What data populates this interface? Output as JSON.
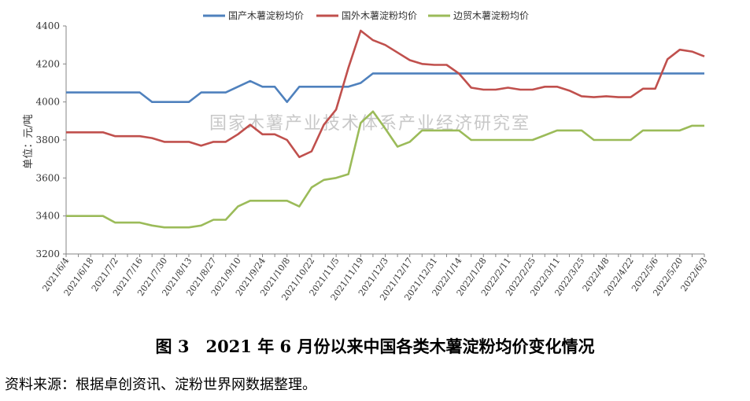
{
  "chart_data": {
    "type": "line",
    "title": "",
    "xlabel": "",
    "ylabel": "单位：元/吨",
    "ylim": [
      3200,
      4400
    ],
    "yticks": [
      3200,
      3400,
      3600,
      3800,
      4000,
      4200,
      4400
    ],
    "grid": false,
    "legend_position": "top",
    "watermark": "国家木薯产业技术体系产业经济研究室",
    "x": [
      "2021/6/4",
      "2021/6/11",
      "2021/6/18",
      "2021/6/25",
      "2021/7/2",
      "2021/7/9",
      "2021/7/16",
      "2021/7/23",
      "2021/7/30",
      "2021/8/6",
      "2021/8/13",
      "2021/8/20",
      "2021/8/27",
      "2021/9/3",
      "2021/9/10",
      "2021/9/17",
      "2021/9/24",
      "2021/10/1",
      "2021/10/8",
      "2021/10/15",
      "2021/10/22",
      "2021/10/29",
      "2021/11/5",
      "2021/11/12",
      "2021/11/19",
      "2021/11/26",
      "2021/12/3",
      "2021/12/10",
      "2021/12/17",
      "2021/12/24",
      "2021/12/31",
      "2022/1/7",
      "2022/1/14",
      "2022/1/21",
      "2022/1/28",
      "2022/2/4",
      "2022/2/11",
      "2022/2/18",
      "2022/2/25",
      "2022/3/4",
      "2022/3/11",
      "2022/3/18",
      "2022/3/25",
      "2022/4/1",
      "2022/4/8",
      "2022/4/15",
      "2022/4/22",
      "2022/4/29",
      "2022/5/6",
      "2022/5/13",
      "2022/5/20",
      "2022/5/27",
      "2022/6/3"
    ],
    "tick_labels": [
      "2021/6/4",
      "2021/6/18",
      "2021/7/2",
      "2021/7/16",
      "2021/7/30",
      "2021/8/13",
      "2021/8/27",
      "2021/9/10",
      "2021/9/24",
      "2021/10/8",
      "2021/10/22",
      "2021/11/5",
      "2021/11/19",
      "2021/12/3",
      "2021/12/17",
      "2021/12/31",
      "2022/1/14",
      "2022/1/28",
      "2022/2/11",
      "2022/2/25",
      "2022/3/11",
      "2022/3/25",
      "2022/4/8",
      "2022/4/22",
      "2022/5/6",
      "2022/5/20",
      "2022/6/3"
    ],
    "series": [
      {
        "name": "国产木薯淀粉均价",
        "color": "#4f81bd",
        "values": [
          4050,
          4050,
          4050,
          4050,
          4050,
          4050,
          4050,
          4000,
          4000,
          4000,
          4000,
          4050,
          4050,
          4050,
          4080,
          4110,
          4080,
          4080,
          4000,
          4080,
          4080,
          4080,
          4080,
          4080,
          4100,
          4150,
          4150,
          4150,
          4150,
          4150,
          4150,
          4150,
          4150,
          4150,
          4150,
          4150,
          4150,
          4150,
          4150,
          4150,
          4150,
          4150,
          4150,
          4150,
          4150,
          4150,
          4150,
          4150,
          4150,
          4150,
          4150,
          4150,
          4150
        ]
      },
      {
        "name": "国外木薯淀粉均价",
        "color": "#c0504d",
        "values": [
          3840,
          3840,
          3840,
          3840,
          3820,
          3820,
          3820,
          3810,
          3790,
          3790,
          3790,
          3770,
          3790,
          3790,
          3830,
          3880,
          3830,
          3830,
          3800,
          3710,
          3740,
          3880,
          3960,
          4180,
          4375,
          4325,
          4300,
          4260,
          4220,
          4200,
          4195,
          4195,
          4150,
          4075,
          4065,
          4065,
          4075,
          4065,
          4065,
          4080,
          4080,
          4060,
          4030,
          4025,
          4030,
          4025,
          4025,
          4070,
          4070,
          4225,
          4275,
          4265,
          4240
        ]
      },
      {
        "name": "边贸木薯淀粉均价",
        "color": "#9bbb59",
        "values": [
          3400,
          3400,
          3400,
          3400,
          3365,
          3365,
          3365,
          3350,
          3340,
          3340,
          3340,
          3350,
          3380,
          3380,
          3450,
          3480,
          3480,
          3480,
          3480,
          3450,
          3550,
          3590,
          3600,
          3620,
          3890,
          3950,
          3860,
          3765,
          3790,
          3850,
          3850,
          3850,
          3850,
          3800,
          3800,
          3800,
          3800,
          3800,
          3800,
          3825,
          3850,
          3850,
          3850,
          3800,
          3800,
          3800,
          3800,
          3850,
          3850,
          3850,
          3850,
          3875,
          3875
        ]
      }
    ]
  },
  "caption": "图 3　2021 年 6 月份以来中国各类木薯淀粉均价变化情况",
  "source_note": "资料来源：根据卓创资讯、淀粉世界网数据整理。"
}
